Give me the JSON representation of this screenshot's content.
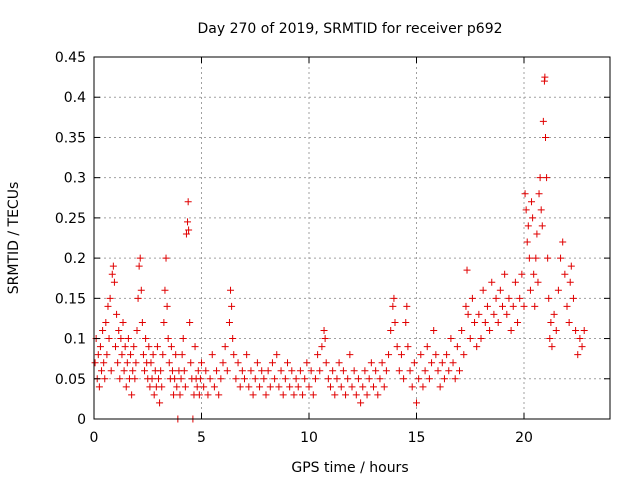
{
  "chart_data": {
    "type": "scatter",
    "title": "Day 270 of 2019, SRMTID for receiver p692",
    "xlabel": "GPS time / hours",
    "ylabel": "SRMTID / TECUs",
    "xlim": [
      0,
      24
    ],
    "ylim": [
      0,
      0.45
    ],
    "xticks": [
      0,
      5,
      10,
      15,
      20
    ],
    "yticks": [
      0,
      0.05,
      0.1,
      0.15,
      0.2,
      0.25,
      0.3,
      0.35,
      0.4,
      0.45
    ],
    "xtick_labels": [
      "0",
      "5",
      "10",
      "15",
      "20"
    ],
    "ytick_labels": [
      "0",
      "0.05",
      "0.1",
      "0.15",
      "0.2",
      "0.25",
      "0.3",
      "0.35",
      "0.4",
      "0.45"
    ],
    "grid": true,
    "marker": "+",
    "color": "#e00000",
    "series": [
      {
        "name": "SRMTID",
        "points": [
          [
            0.05,
            0.07
          ],
          [
            0.1,
            0.1
          ],
          [
            0.15,
            0.05
          ],
          [
            0.2,
            0.08
          ],
          [
            0.25,
            0.04
          ],
          [
            0.3,
            0.09
          ],
          [
            0.35,
            0.06
          ],
          [
            0.4,
            0.11
          ],
          [
            0.45,
            0.07
          ],
          [
            0.5,
            0.05
          ],
          [
            0.55,
            0.12
          ],
          [
            0.6,
            0.08
          ],
          [
            0.65,
            0.14
          ],
          [
            0.7,
            0.1
          ],
          [
            0.75,
            0.15
          ],
          [
            0.8,
            0.06
          ],
          [
            0.85,
            0.18
          ],
          [
            0.9,
            0.19
          ],
          [
            0.95,
            0.17
          ],
          [
            1.0,
            0.09
          ],
          [
            1.05,
            0.13
          ],
          [
            1.1,
            0.07
          ],
          [
            1.15,
            0.11
          ],
          [
            1.2,
            0.05
          ],
          [
            1.25,
            0.1
          ],
          [
            1.3,
            0.08
          ],
          [
            1.35,
            0.12
          ],
          [
            1.4,
            0.06
          ],
          [
            1.45,
            0.09
          ],
          [
            1.5,
            0.04
          ],
          [
            1.55,
            0.07
          ],
          [
            1.6,
            0.1
          ],
          [
            1.65,
            0.05
          ],
          [
            1.7,
            0.08
          ],
          [
            1.75,
            0.03
          ],
          [
            1.8,
            0.06
          ],
          [
            1.85,
            0.09
          ],
          [
            1.9,
            0.05
          ],
          [
            1.95,
            0.07
          ],
          [
            2.0,
            0.11
          ],
          [
            2.05,
            0.15
          ],
          [
            2.1,
            0.19
          ],
          [
            2.15,
            0.2
          ],
          [
            2.2,
            0.16
          ],
          [
            2.25,
            0.12
          ],
          [
            2.3,
            0.08
          ],
          [
            2.35,
            0.06
          ],
          [
            2.4,
            0.1
          ],
          [
            2.45,
            0.07
          ],
          [
            2.5,
            0.05
          ],
          [
            2.55,
            0.09
          ],
          [
            2.6,
            0.04
          ],
          [
            2.65,
            0.07
          ],
          [
            2.7,
            0.05
          ],
          [
            2.75,
            0.08
          ],
          [
            2.8,
            0.03
          ],
          [
            2.85,
            0.06
          ],
          [
            2.9,
            0.04
          ],
          [
            2.95,
            0.09
          ],
          [
            3.0,
            0.05
          ],
          [
            3.05,
            0.02
          ],
          [
            3.1,
            0.06
          ],
          [
            3.15,
            0.04
          ],
          [
            3.2,
            0.08
          ],
          [
            3.25,
            0.12
          ],
          [
            3.3,
            0.16
          ],
          [
            3.35,
            0.2
          ],
          [
            3.4,
            0.14
          ],
          [
            3.45,
            0.1
          ],
          [
            3.5,
            0.07
          ],
          [
            3.55,
            0.05
          ],
          [
            3.6,
            0.09
          ],
          [
            3.65,
            0.06
          ],
          [
            3.7,
            0.03
          ],
          [
            3.75,
            0.05
          ],
          [
            3.8,
            0.08
          ],
          [
            3.85,
            0.04
          ],
          [
            3.9,
            0.0
          ],
          [
            3.95,
            0.06
          ],
          [
            4.0,
            0.03
          ],
          [
            4.05,
            0.05
          ],
          [
            4.1,
            0.08
          ],
          [
            4.15,
            0.1
          ],
          [
            4.2,
            0.06
          ],
          [
            4.25,
            0.04
          ],
          [
            4.3,
            0.23
          ],
          [
            4.35,
            0.245
          ],
          [
            4.38,
            0.27
          ],
          [
            4.4,
            0.235
          ],
          [
            4.45,
            0.12
          ],
          [
            4.5,
            0.07
          ],
          [
            4.55,
            0.05
          ],
          [
            4.6,
            0.0
          ],
          [
            4.65,
            0.03
          ],
          [
            4.7,
            0.09
          ],
          [
            4.75,
            0.05
          ],
          [
            4.8,
            0.04
          ],
          [
            4.85,
            0.06
          ],
          [
            4.9,
            0.03
          ],
          [
            4.95,
            0.05
          ],
          [
            5.0,
            0.07
          ],
          [
            5.1,
            0.04
          ],
          [
            5.2,
            0.06
          ],
          [
            5.3,
            0.03
          ],
          [
            5.4,
            0.05
          ],
          [
            5.5,
            0.08
          ],
          [
            5.6,
            0.04
          ],
          [
            5.7,
            0.06
          ],
          [
            5.8,
            0.03
          ],
          [
            5.9,
            0.05
          ],
          [
            6.0,
            0.07
          ],
          [
            6.1,
            0.09
          ],
          [
            6.2,
            0.06
          ],
          [
            6.3,
            0.12
          ],
          [
            6.35,
            0.16
          ],
          [
            6.4,
            0.14
          ],
          [
            6.45,
            0.1
          ],
          [
            6.5,
            0.08
          ],
          [
            6.6,
            0.05
          ],
          [
            6.7,
            0.07
          ],
          [
            6.8,
            0.04
          ],
          [
            6.9,
            0.06
          ],
          [
            7.0,
            0.05
          ],
          [
            7.1,
            0.08
          ],
          [
            7.2,
            0.04
          ],
          [
            7.3,
            0.06
          ],
          [
            7.4,
            0.03
          ],
          [
            7.5,
            0.05
          ],
          [
            7.6,
            0.07
          ],
          [
            7.7,
            0.04
          ],
          [
            7.8,
            0.06
          ],
          [
            7.9,
            0.05
          ],
          [
            8.0,
            0.03
          ],
          [
            8.1,
            0.06
          ],
          [
            8.2,
            0.04
          ],
          [
            8.3,
            0.07
          ],
          [
            8.4,
            0.05
          ],
          [
            8.5,
            0.08
          ],
          [
            8.6,
            0.04
          ],
          [
            8.7,
            0.06
          ],
          [
            8.8,
            0.03
          ],
          [
            8.9,
            0.05
          ],
          [
            9.0,
            0.07
          ],
          [
            9.1,
            0.04
          ],
          [
            9.2,
            0.06
          ],
          [
            9.3,
            0.03
          ],
          [
            9.4,
            0.05
          ],
          [
            9.5,
            0.04
          ],
          [
            9.6,
            0.06
          ],
          [
            9.7,
            0.03
          ],
          [
            9.8,
            0.05
          ],
          [
            9.9,
            0.07
          ],
          [
            10.0,
            0.04
          ],
          [
            10.1,
            0.06
          ],
          [
            10.2,
            0.03
          ],
          [
            10.3,
            0.05
          ],
          [
            10.4,
            0.08
          ],
          [
            10.5,
            0.06
          ],
          [
            10.6,
            0.09
          ],
          [
            10.7,
            0.11
          ],
          [
            10.75,
            0.1
          ],
          [
            10.8,
            0.07
          ],
          [
            10.9,
            0.05
          ],
          [
            11.0,
            0.04
          ],
          [
            11.1,
            0.06
          ],
          [
            11.2,
            0.03
          ],
          [
            11.3,
            0.05
          ],
          [
            11.4,
            0.07
          ],
          [
            11.5,
            0.04
          ],
          [
            11.6,
            0.06
          ],
          [
            11.7,
            0.03
          ],
          [
            11.8,
            0.05
          ],
          [
            11.9,
            0.08
          ],
          [
            12.0,
            0.04
          ],
          [
            12.1,
            0.06
          ],
          [
            12.2,
            0.03
          ],
          [
            12.3,
            0.05
          ],
          [
            12.4,
            0.02
          ],
          [
            12.5,
            0.04
          ],
          [
            12.6,
            0.06
          ],
          [
            12.7,
            0.03
          ],
          [
            12.8,
            0.05
          ],
          [
            12.9,
            0.07
          ],
          [
            13.0,
            0.04
          ],
          [
            13.1,
            0.06
          ],
          [
            13.2,
            0.03
          ],
          [
            13.3,
            0.05
          ],
          [
            13.4,
            0.07
          ],
          [
            13.5,
            0.04
          ],
          [
            13.6,
            0.06
          ],
          [
            13.7,
            0.08
          ],
          [
            13.8,
            0.11
          ],
          [
            13.9,
            0.14
          ],
          [
            13.95,
            0.15
          ],
          [
            14.0,
            0.12
          ],
          [
            14.1,
            0.09
          ],
          [
            14.2,
            0.06
          ],
          [
            14.3,
            0.08
          ],
          [
            14.4,
            0.05
          ],
          [
            14.5,
            0.12
          ],
          [
            14.55,
            0.14
          ],
          [
            14.6,
            0.09
          ],
          [
            14.7,
            0.06
          ],
          [
            14.8,
            0.04
          ],
          [
            14.9,
            0.07
          ],
          [
            15.0,
            0.02
          ],
          [
            15.1,
            0.05
          ],
          [
            15.2,
            0.08
          ],
          [
            15.3,
            0.04
          ],
          [
            15.4,
            0.06
          ],
          [
            15.5,
            0.09
          ],
          [
            15.6,
            0.05
          ],
          [
            15.7,
            0.07
          ],
          [
            15.8,
            0.11
          ],
          [
            15.9,
            0.08
          ],
          [
            16.0,
            0.06
          ],
          [
            16.1,
            0.04
          ],
          [
            16.2,
            0.07
          ],
          [
            16.3,
            0.05
          ],
          [
            16.4,
            0.08
          ],
          [
            16.5,
            0.06
          ],
          [
            16.6,
            0.1
          ],
          [
            16.7,
            0.07
          ],
          [
            16.8,
            0.05
          ],
          [
            16.9,
            0.09
          ],
          [
            17.0,
            0.06
          ],
          [
            17.1,
            0.11
          ],
          [
            17.2,
            0.08
          ],
          [
            17.3,
            0.14
          ],
          [
            17.35,
            0.185
          ],
          [
            17.4,
            0.13
          ],
          [
            17.5,
            0.1
          ],
          [
            17.6,
            0.15
          ],
          [
            17.7,
            0.12
          ],
          [
            17.8,
            0.09
          ],
          [
            17.9,
            0.13
          ],
          [
            18.0,
            0.1
          ],
          [
            18.1,
            0.16
          ],
          [
            18.2,
            0.12
          ],
          [
            18.3,
            0.14
          ],
          [
            18.4,
            0.11
          ],
          [
            18.5,
            0.17
          ],
          [
            18.6,
            0.13
          ],
          [
            18.7,
            0.15
          ],
          [
            18.8,
            0.12
          ],
          [
            18.9,
            0.16
          ],
          [
            19.0,
            0.14
          ],
          [
            19.1,
            0.18
          ],
          [
            19.2,
            0.13
          ],
          [
            19.3,
            0.15
          ],
          [
            19.4,
            0.11
          ],
          [
            19.5,
            0.14
          ],
          [
            19.6,
            0.17
          ],
          [
            19.7,
            0.12
          ],
          [
            19.8,
            0.15
          ],
          [
            19.9,
            0.18
          ],
          [
            20.0,
            0.14
          ],
          [
            20.05,
            0.28
          ],
          [
            20.1,
            0.26
          ],
          [
            20.15,
            0.22
          ],
          [
            20.2,
            0.24
          ],
          [
            20.25,
            0.2
          ],
          [
            20.3,
            0.16
          ],
          [
            20.35,
            0.27
          ],
          [
            20.4,
            0.25
          ],
          [
            20.45,
            0.18
          ],
          [
            20.5,
            0.14
          ],
          [
            20.55,
            0.2
          ],
          [
            20.6,
            0.23
          ],
          [
            20.65,
            0.17
          ],
          [
            20.7,
            0.28
          ],
          [
            20.75,
            0.3
          ],
          [
            20.8,
            0.26
          ],
          [
            20.85,
            0.24
          ],
          [
            20.9,
            0.37
          ],
          [
            20.95,
            0.42
          ],
          [
            20.97,
            0.425
          ],
          [
            21.0,
            0.35
          ],
          [
            21.05,
            0.3
          ],
          [
            21.1,
            0.2
          ],
          [
            21.15,
            0.15
          ],
          [
            21.2,
            0.1
          ],
          [
            21.25,
            0.12
          ],
          [
            21.3,
            0.09
          ],
          [
            21.4,
            0.13
          ],
          [
            21.5,
            0.11
          ],
          [
            21.6,
            0.16
          ],
          [
            21.7,
            0.2
          ],
          [
            21.8,
            0.22
          ],
          [
            21.9,
            0.18
          ],
          [
            22.0,
            0.14
          ],
          [
            22.1,
            0.12
          ],
          [
            22.15,
            0.17
          ],
          [
            22.2,
            0.19
          ],
          [
            22.3,
            0.15
          ],
          [
            22.4,
            0.11
          ],
          [
            22.5,
            0.08
          ],
          [
            22.6,
            0.1
          ],
          [
            22.7,
            0.09
          ],
          [
            22.8,
            0.11
          ]
        ]
      }
    ]
  }
}
